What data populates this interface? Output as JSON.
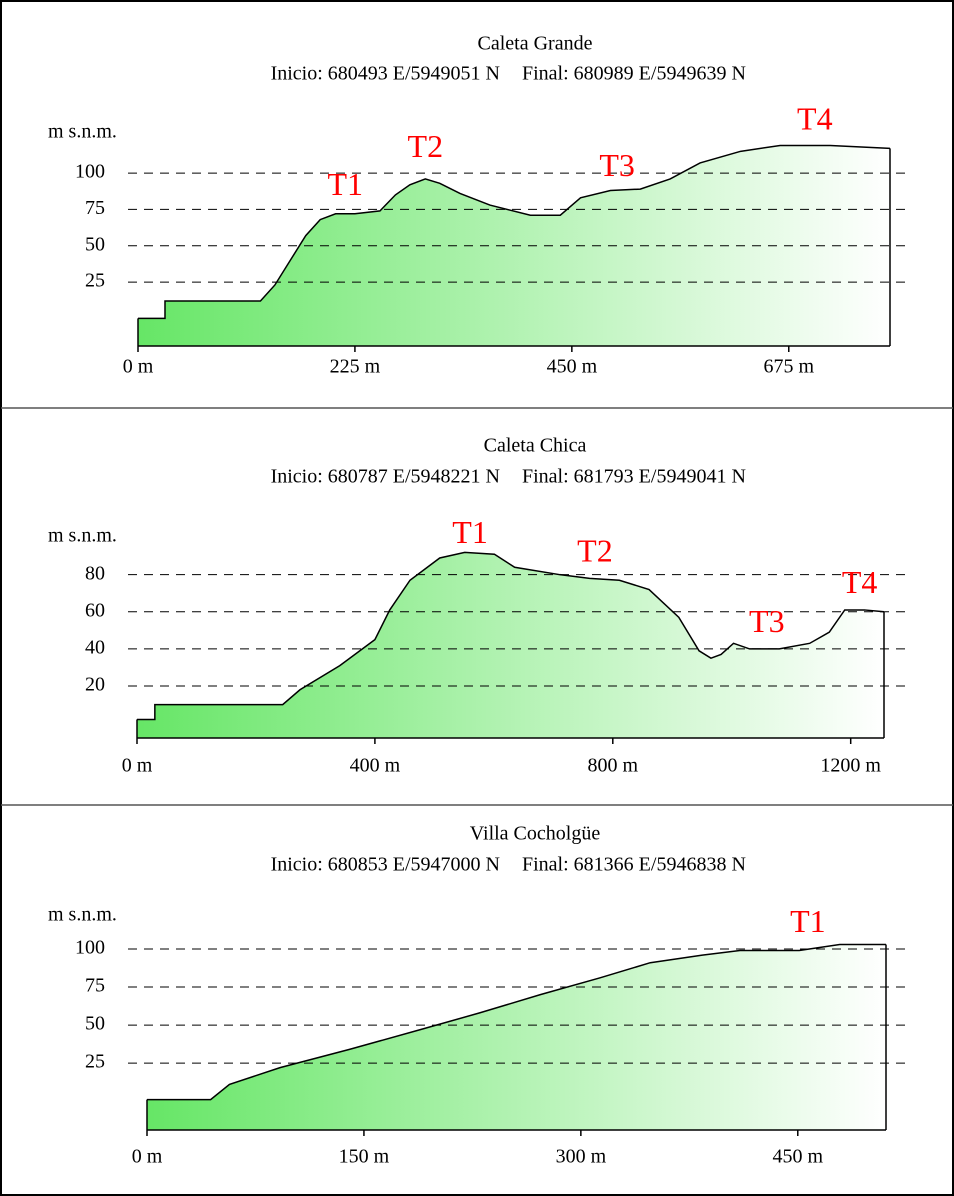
{
  "chart_data": [
    {
      "type": "area",
      "title": "Caleta Grande",
      "subtitle": [
        "Inicio: 680493 E/5949051 N",
        "Final: 680989 E/5949639 N"
      ],
      "y_label": "m s.n.m.",
      "x": [
        0,
        28,
        28,
        127,
        142,
        158,
        174,
        189,
        205,
        225,
        251,
        267,
        282,
        298,
        313,
        334,
        365,
        407,
        438,
        459,
        490,
        521,
        552,
        583,
        625,
        666,
        718,
        780
      ],
      "values": [
        0,
        0,
        12,
        12,
        23,
        40,
        57,
        68,
        72,
        72,
        74,
        85,
        92,
        96,
        93,
        86,
        78,
        71,
        71,
        83,
        88,
        89,
        96,
        107,
        115,
        119,
        119,
        117
      ],
      "xlim": [
        0,
        780
      ],
      "ylim": [
        -19,
        140
      ],
      "xticks": [
        {
          "value": 0,
          "label": "0 m"
        },
        {
          "value": 225,
          "label": "225 m"
        },
        {
          "value": 450,
          "label": "450 m"
        },
        {
          "value": 675,
          "label": "675 m"
        }
      ],
      "yticks": [
        25,
        50,
        75,
        100
      ],
      "grid": true,
      "fill_colors": [
        "#66e666",
        "#ffffff"
      ],
      "annotation_color": "#ff0000",
      "annotations": [
        {
          "text": "T1",
          "x": 215,
          "y": 90
        },
        {
          "text": "T2",
          "x": 298,
          "y": 116
        },
        {
          "text": "T3",
          "x": 497,
          "y": 103
        },
        {
          "text": "T4",
          "x": 702,
          "y": 135
        }
      ]
    },
    {
      "type": "area",
      "title": "Caleta Chica",
      "subtitle": [
        "Inicio: 680787 E/5948221 N",
        "Final: 681793 E/5949041 N"
      ],
      "y_label": "m s.n.m.",
      "x": [
        0,
        30,
        30,
        245,
        274,
        341,
        400,
        425,
        459,
        509,
        551,
        601,
        635,
        711,
        761,
        811,
        861,
        911,
        945,
        965,
        982,
        1003,
        1030,
        1080,
        1131,
        1164,
        1190,
        1223,
        1256
      ],
      "values": [
        2,
        2,
        10,
        10,
        18,
        31,
        45,
        61,
        77,
        89,
        92,
        91,
        84,
        80,
        78,
        77,
        72,
        57,
        39,
        35,
        37,
        43,
        40,
        40,
        43,
        49,
        61,
        61,
        60
      ],
      "xlim": [
        0,
        1256
      ],
      "ylim": [
        -8,
        110
      ],
      "xticks": [
        {
          "value": 0,
          "label": "0 m"
        },
        {
          "value": 400,
          "label": "400 m"
        },
        {
          "value": 800,
          "label": "800 m"
        },
        {
          "value": 1200,
          "label": "1200 m"
        }
      ],
      "yticks": [
        20,
        40,
        60,
        80
      ],
      "grid": true,
      "fill_colors": [
        "#66e666",
        "#ffffff"
      ],
      "annotation_color": "#ff0000",
      "annotations": [
        {
          "text": "T1",
          "x": 560,
          "y": 101
        },
        {
          "text": "T2",
          "x": 770,
          "y": 91
        },
        {
          "text": "T3",
          "x": 1059,
          "y": 53
        },
        {
          "text": "T4",
          "x": 1215,
          "y": 74
        }
      ]
    },
    {
      "type": "area",
      "title": "Villa Cocholgüe",
      "subtitle": [
        "Inicio: 680853 E/5947000 N",
        "Final: 681366 E/5946838 N"
      ],
      "y_label": "m s.n.m.",
      "x": [
        0,
        44,
        57,
        92,
        140,
        189,
        230,
        272,
        313,
        348,
        384,
        410,
        451,
        479,
        511
      ],
      "values": [
        1,
        1,
        11,
        22,
        34,
        47,
        58,
        70,
        81,
        91,
        96,
        99,
        99,
        103,
        103
      ],
      "xlim": [
        0,
        511
      ],
      "ylim": [
        -19,
        125
      ],
      "xticks": [
        {
          "value": 0,
          "label": "0 m"
        },
        {
          "value": 150,
          "label": "150 m"
        },
        {
          "value": 300,
          "label": "300 m"
        },
        {
          "value": 450,
          "label": "450 m"
        }
      ],
      "yticks": [
        25,
        50,
        75,
        100
      ],
      "grid": true,
      "fill_colors": [
        "#66e666",
        "#ffffff"
      ],
      "annotation_color": "#ff0000",
      "annotations": [
        {
          "text": "T1",
          "x": 457,
          "y": 116
        }
      ]
    }
  ]
}
